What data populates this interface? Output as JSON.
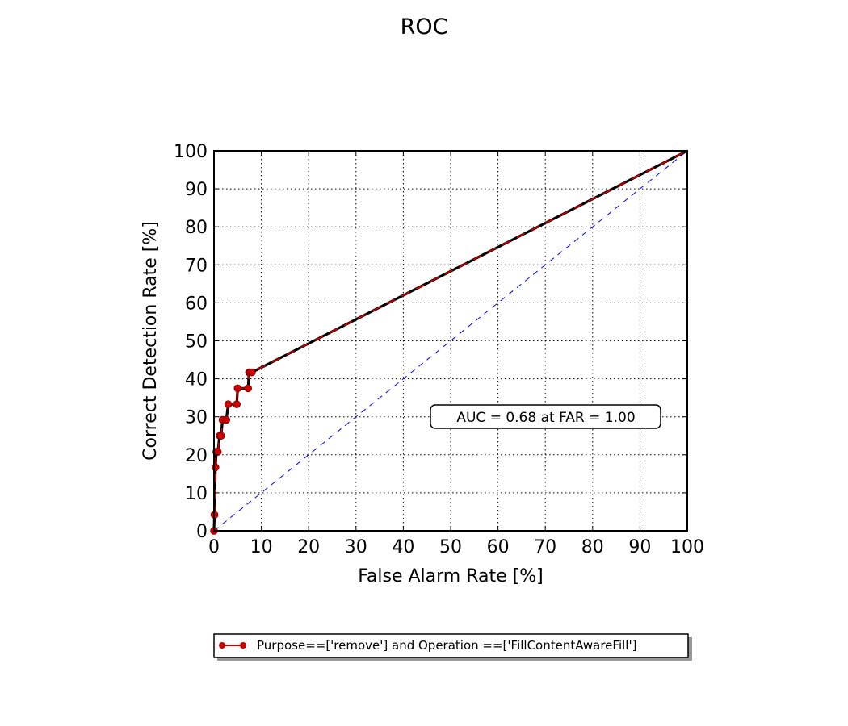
{
  "chart_data": {
    "type": "line",
    "title": "ROC",
    "xlabel": "False Alarm Rate [%]",
    "ylabel": "Correct Detection Rate [%]",
    "xlim": [
      0,
      100
    ],
    "ylim": [
      0,
      100
    ],
    "xticks": [
      0,
      10,
      20,
      30,
      40,
      50,
      60,
      70,
      80,
      90,
      100
    ],
    "yticks": [
      0,
      10,
      20,
      30,
      40,
      50,
      60,
      70,
      80,
      90,
      100
    ],
    "grid": true,
    "legend_position": "bottom-center",
    "annotation": "AUC = 0.68 at FAR = 1.00",
    "series": [
      {
        "name": "Purpose==['remove'] and Operation ==['FillContentAwareFill']",
        "color": "#cc0000",
        "x": [
          0,
          0.1,
          0.3,
          0.5,
          0.8,
          1.2,
          1.5,
          1.8,
          2.6,
          3.0,
          4.8,
          5.0,
          7.2,
          7.4,
          7.6,
          8.0,
          100
        ],
        "y": [
          0,
          4.2,
          16.7,
          20.8,
          20.8,
          25.0,
          25.0,
          29.2,
          29.2,
          33.3,
          33.3,
          37.5,
          37.5,
          41.7,
          41.7,
          41.7,
          100
        ]
      }
    ],
    "chance_line": {
      "x": [
        0,
        100
      ],
      "y": [
        0,
        100
      ],
      "color": "#0000ff"
    }
  }
}
